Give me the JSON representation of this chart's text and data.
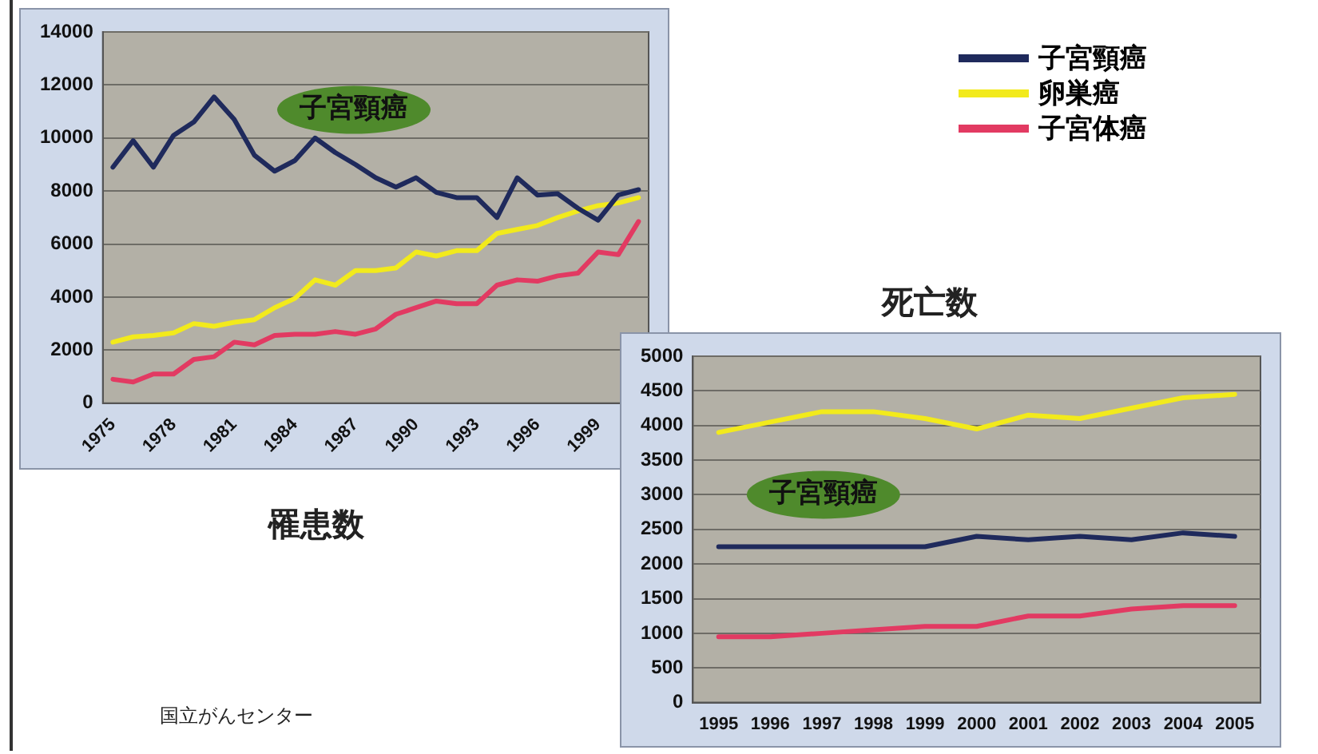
{
  "chart_data": [
    {
      "type": "line",
      "title": "罹患数",
      "categories": [
        "1975",
        null,
        null,
        "1978",
        null,
        null,
        "1981",
        null,
        null,
        "1984",
        null,
        null,
        "1987",
        null,
        null,
        "1990",
        null,
        null,
        "1993",
        null,
        null,
        "1996",
        null,
        null,
        "1999",
        null,
        null
      ],
      "series": [
        {
          "name": "子宮頸癌",
          "color": "#1f2a5c",
          "values": [
            8900,
            9900,
            8900,
            10100,
            10600,
            11550,
            10700,
            9350,
            8750,
            9150,
            10000,
            9450,
            9000,
            8500,
            8150,
            8500,
            7950,
            7750,
            7750,
            7000,
            8500,
            7850,
            7900,
            7350,
            6900,
            7850,
            8050
          ]
        },
        {
          "name": "卵巣癌",
          "color": "#f2ea1c",
          "values": [
            2300,
            2500,
            2550,
            2650,
            3000,
            2900,
            3050,
            3150,
            3600,
            3950,
            4650,
            4450,
            5000,
            5000,
            5100,
            5700,
            5550,
            5750,
            5750,
            6400,
            6550,
            6700,
            7000,
            7250,
            7450,
            7550,
            7750
          ]
        },
        {
          "name": "子宮体癌",
          "color": "#e23a62",
          "values": [
            900,
            800,
            1100,
            1100,
            1650,
            1750,
            2300,
            2200,
            2550,
            2600,
            2600,
            2700,
            2600,
            2800,
            3350,
            3600,
            3850,
            3750,
            3750,
            4450,
            4650,
            4600,
            4800,
            4900,
            5700,
            5600,
            6850
          ]
        }
      ],
      "ylim": [
        0,
        14000
      ],
      "yticks": [
        0,
        2000,
        4000,
        6000,
        8000,
        10000,
        12000,
        14000
      ],
      "grid": "y",
      "legend": "right",
      "annotations": [
        "子宮頸癌",
        "国立がんセンター"
      ]
    },
    {
      "type": "line",
      "title": "死亡数",
      "categories": [
        "1995",
        "1996",
        "1997",
        "1998",
        "1999",
        "2000",
        "2001",
        "2002",
        "2003",
        "2004",
        "2005"
      ],
      "series": [
        {
          "color": "#f2ea1c",
          "values": [
            3900,
            4050,
            4200,
            4200,
            4100,
            3950,
            4150,
            4100,
            4250,
            4400,
            4450
          ]
        },
        {
          "color": "#1f2a5c",
          "values": [
            2250,
            2250,
            2250,
            2250,
            2250,
            2400,
            2350,
            2400,
            2350,
            2450,
            2400
          ]
        },
        {
          "color": "#e23a62",
          "values": [
            950,
            950,
            1000,
            1050,
            1100,
            1100,
            1250,
            1250,
            1350,
            1400,
            1400
          ]
        }
      ],
      "ylim": [
        0,
        5000
      ],
      "yticks": [
        0,
        500,
        1000,
        1500,
        2000,
        2500,
        3000,
        3500,
        4000,
        4500,
        5000
      ],
      "grid": "y",
      "legend": false,
      "annotations": [
        "子宮頸癌"
      ]
    }
  ]
}
